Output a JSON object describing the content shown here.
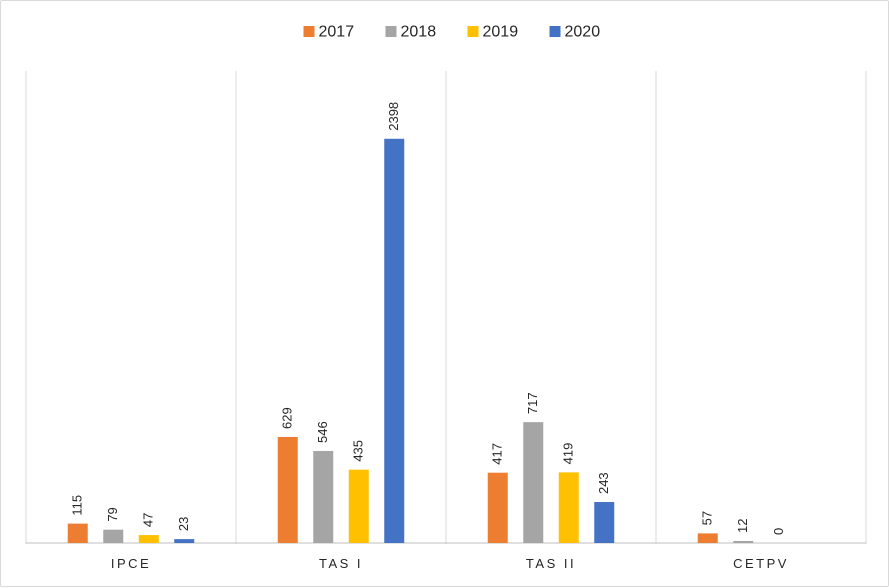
{
  "chart_data": {
    "type": "bar",
    "categories": [
      "IPCE",
      "TAS I",
      "TAS II",
      "CETPV"
    ],
    "series": [
      {
        "name": "2017",
        "color": "#ED7D31",
        "values": [
          115,
          629,
          417,
          57
        ]
      },
      {
        "name": "2018",
        "color": "#A5A5A5",
        "values": [
          79,
          546,
          717,
          12
        ]
      },
      {
        "name": "2019",
        "color": "#FFC000",
        "values": [
          47,
          435,
          419,
          0
        ]
      },
      {
        "name": "2020",
        "color": "#4472C4",
        "values": [
          23,
          2398,
          243,
          null
        ]
      }
    ],
    "data_labels": [
      [
        "115",
        "79",
        "47",
        "23"
      ],
      [
        "629",
        "546",
        "435",
        "2398"
      ],
      [
        "417",
        "717",
        "419",
        "243"
      ],
      [
        "57",
        "12",
        "0",
        ""
      ]
    ],
    "ylim": [
      0,
      2800
    ],
    "legend_position": "top-center",
    "grid": "vertical category separators",
    "title": "",
    "xlabel": "",
    "ylabel": ""
  }
}
